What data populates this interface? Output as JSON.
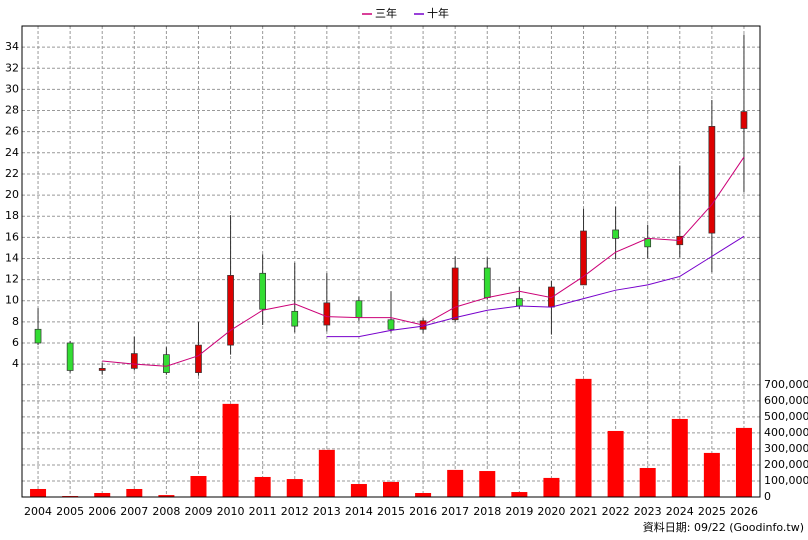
{
  "chart_data": {
    "type": "candlestick",
    "categories": [
      "2004",
      "2005",
      "2006",
      "2007",
      "2008",
      "2009",
      "2010",
      "2011",
      "2012",
      "2013",
      "2014",
      "2015",
      "2016",
      "2017",
      "2018",
      "2019",
      "2020",
      "2021",
      "2022",
      "2023",
      "2024",
      "2025",
      "2026"
    ],
    "open": [
      7.3,
      6.0,
      3.4,
      3.6,
      4.9,
      3.2,
      5.8,
      12.6,
      9.0,
      7.7,
      10.0,
      8.2,
      7.3,
      8.2,
      13.1,
      10.2,
      9.4,
      11.5,
      16.7,
      15.9,
      15.3,
      16.4,
      26.3
    ],
    "high": [
      9.3,
      6.2,
      4.1,
      6.6,
      5.6,
      8.0,
      18.1,
      14.4,
      13.6,
      12.6,
      10.4,
      10.9,
      8.4,
      14.2,
      14.1,
      11.3,
      11.9,
      18.7,
      18.9,
      17.2,
      22.8,
      29.0,
      35.2
    ],
    "low": [
      5.8,
      3.2,
      3.0,
      3.4,
      3.0,
      2.9,
      4.9,
      7.7,
      7.0,
      7.1,
      8.1,
      7.0,
      6.9,
      8.0,
      10.1,
      9.2,
      6.8,
      11.5,
      13.9,
      14.0,
      14.1,
      12.7,
      20.3
    ],
    "close": [
      6.0,
      3.4,
      3.6,
      5.0,
      3.2,
      5.8,
      12.4,
      9.2,
      7.6,
      9.8,
      8.4,
      7.3,
      8.1,
      13.1,
      10.3,
      9.5,
      11.3,
      16.6,
      15.9,
      15.1,
      16.1,
      26.5,
      27.9
    ],
    "up_color": "#dd0000",
    "down_color": "#33dd33",
    "series": [
      {
        "name": "三年",
        "color": "#cc0077",
        "values": [
          null,
          null,
          4.3,
          4.0,
          3.8,
          4.8,
          7.2,
          9.1,
          9.7,
          8.5,
          8.4,
          8.4,
          7.7,
          9.4,
          10.3,
          10.9,
          10.3,
          12.3,
          14.6,
          15.9,
          15.7,
          19.1,
          23.6
        ]
      },
      {
        "name": "十年",
        "color": "#7700cc",
        "values": [
          null,
          null,
          null,
          null,
          null,
          null,
          null,
          null,
          null,
          6.6,
          6.6,
          7.2,
          7.6,
          8.4,
          9.1,
          9.5,
          9.4,
          10.2,
          11.0,
          11.5,
          12.3,
          14.2,
          16.1
        ]
      }
    ],
    "ylim": [
      2.5,
      36
    ],
    "yticks": [
      4,
      6,
      8,
      10,
      12,
      14,
      16,
      18,
      20,
      22,
      24,
      26,
      28,
      30,
      32,
      34
    ],
    "volume": {
      "color": "#ff0000",
      "values": [
        50000,
        6000,
        25000,
        50000,
        12000,
        131000,
        581000,
        125000,
        112000,
        294000,
        81000,
        94000,
        25000,
        169000,
        162000,
        31000,
        119000,
        737000,
        412000,
        181000,
        487000,
        275000,
        431000
      ],
      "ylim": [
        0,
        730000
      ],
      "yticks": [
        0,
        {
          "value": 100000,
          "label": "100,000"
        },
        {
          "value": 200000,
          "label": "200,000"
        },
        {
          "value": 300000,
          "label": "300,000"
        },
        {
          "value": 400000,
          "label": "400,000"
        },
        {
          "value": 500000,
          "label": "500,000"
        },
        {
          "value": 600000,
          "label": "600,000"
        },
        {
          "value": 700000,
          "label": "700,000"
        }
      ]
    },
    "grid": true,
    "footer": "資料日期: 09/22  (Goodinfo.tw)"
  }
}
